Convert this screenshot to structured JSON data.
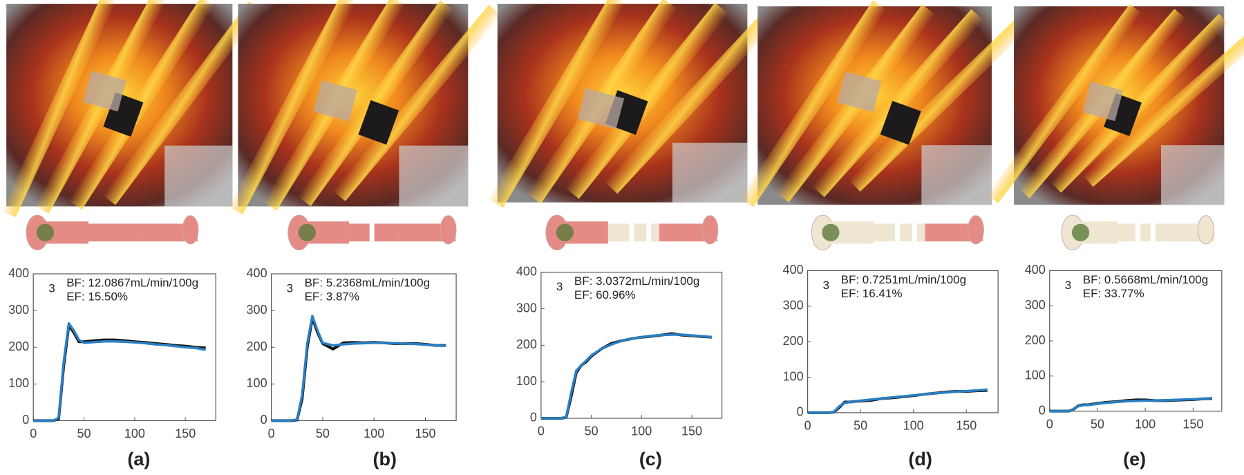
{
  "chart_data": [
    {
      "type": "line",
      "title": "(a)",
      "annotations": [
        "3",
        "BF: 12.0867mL/min/100g",
        "EF: 15.50%"
      ],
      "x": [
        0,
        10,
        20,
        25,
        30,
        35,
        40,
        45,
        50,
        60,
        70,
        80,
        90,
        100,
        110,
        120,
        130,
        140,
        150,
        160,
        170
      ],
      "series": [
        {
          "color": "#111111",
          "values": [
            0,
            0,
            0,
            5,
            150,
            260,
            240,
            215,
            215,
            218,
            220,
            220,
            218,
            215,
            213,
            210,
            208,
            205,
            203,
            200,
            198
          ]
        },
        {
          "color": "#2a7fc4",
          "values": [
            0,
            0,
            0,
            8,
            160,
            265,
            245,
            220,
            212,
            214,
            216,
            216,
            215,
            213,
            211,
            208,
            206,
            203,
            200,
            198,
            193
          ]
        }
      ],
      "xlim": [
        0,
        180
      ],
      "xticks": [
        0,
        50,
        100,
        150
      ],
      "ylim": [
        0,
        400
      ],
      "yticks": [
        0,
        100,
        200,
        300,
        400
      ]
    },
    {
      "type": "line",
      "title": "(b)",
      "annotations": [
        "3",
        "BF: 5.2368mL/min/100g",
        "EF: 3.87%"
      ],
      "x": [
        0,
        10,
        20,
        25,
        30,
        35,
        40,
        45,
        50,
        60,
        70,
        80,
        90,
        100,
        110,
        120,
        130,
        140,
        150,
        160,
        170
      ],
      "series": [
        {
          "color": "#111111",
          "values": [
            0,
            0,
            0,
            2,
            60,
            200,
            280,
            240,
            210,
            195,
            212,
            213,
            212,
            213,
            212,
            210,
            210,
            210,
            208,
            205,
            205
          ]
        },
        {
          "color": "#2a7fc4",
          "values": [
            0,
            0,
            0,
            3,
            70,
            210,
            285,
            245,
            212,
            205,
            208,
            210,
            211,
            212,
            212,
            211,
            210,
            209,
            207,
            205,
            204
          ]
        }
      ],
      "xlim": [
        0,
        180
      ],
      "xticks": [
        0,
        50,
        100,
        150
      ],
      "ylim": [
        0,
        400
      ],
      "yticks": [
        0,
        100,
        200,
        300,
        400
      ]
    },
    {
      "type": "line",
      "title": "(c)",
      "annotations": [
        "3",
        "BF: 3.0372mL/min/100g",
        "EF: 60.96%"
      ],
      "x": [
        0,
        10,
        20,
        25,
        30,
        35,
        40,
        45,
        50,
        60,
        70,
        80,
        90,
        100,
        110,
        120,
        130,
        140,
        150,
        160,
        170
      ],
      "series": [
        {
          "color": "#111111",
          "values": [
            0,
            0,
            0,
            3,
            60,
            125,
            145,
            155,
            170,
            190,
            205,
            212,
            218,
            222,
            225,
            228,
            232,
            228,
            226,
            224,
            222
          ]
        },
        {
          "color": "#2a7fc4",
          "values": [
            0,
            0,
            0,
            4,
            70,
            130,
            145,
            158,
            172,
            190,
            202,
            212,
            218,
            222,
            226,
            228,
            229,
            229,
            227,
            225,
            222
          ]
        }
      ],
      "xlim": [
        0,
        180
      ],
      "xticks": [
        0,
        50,
        100,
        150
      ],
      "ylim": [
        0,
        400
      ],
      "yticks": [
        0,
        100,
        200,
        300,
        400
      ]
    },
    {
      "type": "line",
      "title": "(d)",
      "annotations": [
        "3",
        "BF: 0.7251mL/min/100g",
        "EF: 16.41%"
      ],
      "x": [
        0,
        10,
        20,
        25,
        30,
        35,
        40,
        45,
        50,
        60,
        70,
        80,
        90,
        100,
        110,
        120,
        130,
        140,
        150,
        160,
        170
      ],
      "series": [
        {
          "color": "#111111",
          "values": [
            0,
            0,
            0,
            2,
            15,
            30,
            30,
            32,
            33,
            35,
            40,
            42,
            45,
            48,
            52,
            55,
            58,
            60,
            60,
            62,
            63
          ]
        },
        {
          "color": "#2a7fc4",
          "values": [
            0,
            0,
            0,
            3,
            18,
            28,
            30,
            32,
            34,
            37,
            40,
            43,
            46,
            49,
            52,
            55,
            57,
            59,
            61,
            63,
            65
          ]
        }
      ],
      "xlim": [
        0,
        180
      ],
      "xticks": [
        0,
        50,
        100,
        150
      ],
      "ylim": [
        0,
        400
      ],
      "yticks": [
        0,
        100,
        200,
        300,
        400
      ]
    },
    {
      "type": "line",
      "title": "(e)",
      "annotations": [
        "3",
        "BF: 0.5668mL/min/100g",
        "EF: 33.77%"
      ],
      "x": [
        0,
        10,
        20,
        25,
        30,
        35,
        40,
        45,
        50,
        60,
        70,
        80,
        90,
        100,
        110,
        120,
        130,
        140,
        150,
        160,
        170
      ],
      "series": [
        {
          "color": "#111111",
          "values": [
            0,
            0,
            0,
            5,
            15,
            18,
            18,
            20,
            22,
            25,
            27,
            30,
            32,
            32,
            30,
            30,
            31,
            32,
            33,
            35,
            36
          ]
        },
        {
          "color": "#2a7fc4",
          "values": [
            0,
            0,
            0,
            5,
            14,
            17,
            18,
            19,
            21,
            24,
            26,
            28,
            29,
            30,
            30,
            31,
            32,
            33,
            34,
            35,
            37
          ]
        }
      ],
      "xlim": [
        0,
        180
      ],
      "xticks": [
        0,
        50,
        100,
        150
      ],
      "ylim": [
        0,
        400
      ],
      "yticks": [
        0,
        100,
        200,
        300,
        400
      ]
    }
  ]
}
